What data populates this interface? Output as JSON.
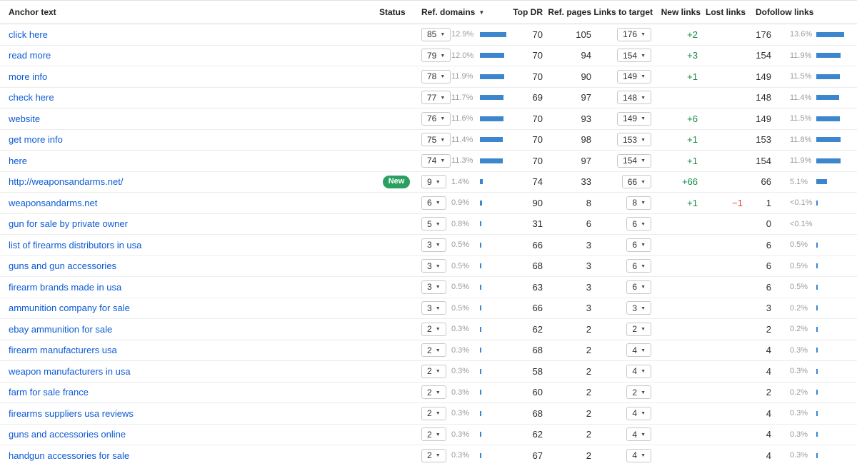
{
  "colors": {
    "link": "#0d5bd5",
    "bar": "#3b86cc",
    "badge_green": "#29a060",
    "positive_green": "#188a47",
    "negative_red": "#dd3d3d",
    "pct_gray": "#9b9b9b"
  },
  "icons": {
    "sort_desc": "▼",
    "caret_down": "▼"
  },
  "table": {
    "headers": {
      "anchor": "Anchor text",
      "status": "Status",
      "ref_domains": "Ref. domains",
      "top_dr": "Top DR",
      "ref_pages": "Ref. pages",
      "links_to_target": "Links to target",
      "new_links": "New links",
      "lost_links": "Lost links",
      "dofollow": "Dofollow links"
    },
    "sorted_by": "ref_domains",
    "rows": [
      {
        "anchor": "click here",
        "status": "",
        "rd_value": "85",
        "rd_pct": "12.9%",
        "rd_pct_num": 12.9,
        "top_dr": "70",
        "ref_pages": "105",
        "links_to_target": "176",
        "new_links": "+2",
        "lost_links": "",
        "df_value": "176",
        "df_pct": "13.6%",
        "df_pct_num": 13.6
      },
      {
        "anchor": "read more",
        "status": "",
        "rd_value": "79",
        "rd_pct": "12.0%",
        "rd_pct_num": 12.0,
        "top_dr": "70",
        "ref_pages": "94",
        "links_to_target": "154",
        "new_links": "+3",
        "lost_links": "",
        "df_value": "154",
        "df_pct": "11.9%",
        "df_pct_num": 11.9
      },
      {
        "anchor": "more info",
        "status": "",
        "rd_value": "78",
        "rd_pct": "11.9%",
        "rd_pct_num": 11.9,
        "top_dr": "70",
        "ref_pages": "90",
        "links_to_target": "149",
        "new_links": "+1",
        "lost_links": "",
        "df_value": "149",
        "df_pct": "11.5%",
        "df_pct_num": 11.5
      },
      {
        "anchor": "check here",
        "status": "",
        "rd_value": "77",
        "rd_pct": "11.7%",
        "rd_pct_num": 11.7,
        "top_dr": "69",
        "ref_pages": "97",
        "links_to_target": "148",
        "new_links": "",
        "lost_links": "",
        "df_value": "148",
        "df_pct": "11.4%",
        "df_pct_num": 11.4
      },
      {
        "anchor": "website",
        "status": "",
        "rd_value": "76",
        "rd_pct": "11.6%",
        "rd_pct_num": 11.6,
        "top_dr": "70",
        "ref_pages": "93",
        "links_to_target": "149",
        "new_links": "+6",
        "lost_links": "",
        "df_value": "149",
        "df_pct": "11.5%",
        "df_pct_num": 11.5
      },
      {
        "anchor": "get more info",
        "status": "",
        "rd_value": "75",
        "rd_pct": "11.4%",
        "rd_pct_num": 11.4,
        "top_dr": "70",
        "ref_pages": "98",
        "links_to_target": "153",
        "new_links": "+1",
        "lost_links": "",
        "df_value": "153",
        "df_pct": "11.8%",
        "df_pct_num": 11.8
      },
      {
        "anchor": "here",
        "status": "",
        "rd_value": "74",
        "rd_pct": "11.3%",
        "rd_pct_num": 11.3,
        "top_dr": "70",
        "ref_pages": "97",
        "links_to_target": "154",
        "new_links": "+1",
        "lost_links": "",
        "df_value": "154",
        "df_pct": "11.9%",
        "df_pct_num": 11.9
      },
      {
        "anchor": "http://weaponsandarms.net/",
        "status": "New",
        "rd_value": "9",
        "rd_pct": "1.4%",
        "rd_pct_num": 1.4,
        "top_dr": "74",
        "ref_pages": "33",
        "links_to_target": "66",
        "new_links": "+66",
        "lost_links": "",
        "df_value": "66",
        "df_pct": "5.1%",
        "df_pct_num": 5.1
      },
      {
        "anchor": "weaponsandarms.net",
        "status": "",
        "rd_value": "6",
        "rd_pct": "0.9%",
        "rd_pct_num": 0.9,
        "top_dr": "90",
        "ref_pages": "8",
        "links_to_target": "8",
        "new_links": "+1",
        "lost_links": "−1",
        "df_value": "1",
        "df_pct": "<0.1%",
        "df_pct_num": 0.08
      },
      {
        "anchor": "gun for sale by private owner",
        "status": "",
        "rd_value": "5",
        "rd_pct": "0.8%",
        "rd_pct_num": 0.8,
        "top_dr": "31",
        "ref_pages": "6",
        "links_to_target": "6",
        "new_links": "",
        "lost_links": "",
        "df_value": "0",
        "df_pct": "<0.1%",
        "df_pct_num": 0
      },
      {
        "anchor": "list of firearms distributors in usa",
        "status": "",
        "rd_value": "3",
        "rd_pct": "0.5%",
        "rd_pct_num": 0.5,
        "top_dr": "66",
        "ref_pages": "3",
        "links_to_target": "6",
        "new_links": "",
        "lost_links": "",
        "df_value": "6",
        "df_pct": "0.5%",
        "df_pct_num": 0.5
      },
      {
        "anchor": "guns and gun accessories",
        "status": "",
        "rd_value": "3",
        "rd_pct": "0.5%",
        "rd_pct_num": 0.5,
        "top_dr": "68",
        "ref_pages": "3",
        "links_to_target": "6",
        "new_links": "",
        "lost_links": "",
        "df_value": "6",
        "df_pct": "0.5%",
        "df_pct_num": 0.5
      },
      {
        "anchor": "firearm brands made in usa",
        "status": "",
        "rd_value": "3",
        "rd_pct": "0.5%",
        "rd_pct_num": 0.5,
        "top_dr": "63",
        "ref_pages": "3",
        "links_to_target": "6",
        "new_links": "",
        "lost_links": "",
        "df_value": "6",
        "df_pct": "0.5%",
        "df_pct_num": 0.5
      },
      {
        "anchor": "ammunition company for sale",
        "status": "",
        "rd_value": "3",
        "rd_pct": "0.5%",
        "rd_pct_num": 0.5,
        "top_dr": "66",
        "ref_pages": "3",
        "links_to_target": "3",
        "new_links": "",
        "lost_links": "",
        "df_value": "3",
        "df_pct": "0.2%",
        "df_pct_num": 0.2
      },
      {
        "anchor": "ebay ammunition for sale",
        "status": "",
        "rd_value": "2",
        "rd_pct": "0.3%",
        "rd_pct_num": 0.3,
        "top_dr": "62",
        "ref_pages": "2",
        "links_to_target": "2",
        "new_links": "",
        "lost_links": "",
        "df_value": "2",
        "df_pct": "0.2%",
        "df_pct_num": 0.2
      },
      {
        "anchor": "firearm manufacturers usa",
        "status": "",
        "rd_value": "2",
        "rd_pct": "0.3%",
        "rd_pct_num": 0.3,
        "top_dr": "68",
        "ref_pages": "2",
        "links_to_target": "4",
        "new_links": "",
        "lost_links": "",
        "df_value": "4",
        "df_pct": "0.3%",
        "df_pct_num": 0.3
      },
      {
        "anchor": "weapon manufacturers in usa",
        "status": "",
        "rd_value": "2",
        "rd_pct": "0.3%",
        "rd_pct_num": 0.3,
        "top_dr": "58",
        "ref_pages": "2",
        "links_to_target": "4",
        "new_links": "",
        "lost_links": "",
        "df_value": "4",
        "df_pct": "0.3%",
        "df_pct_num": 0.3
      },
      {
        "anchor": "farm for sale france",
        "status": "",
        "rd_value": "2",
        "rd_pct": "0.3%",
        "rd_pct_num": 0.3,
        "top_dr": "60",
        "ref_pages": "2",
        "links_to_target": "2",
        "new_links": "",
        "lost_links": "",
        "df_value": "2",
        "df_pct": "0.2%",
        "df_pct_num": 0.2
      },
      {
        "anchor": "firearms suppliers usa reviews",
        "status": "",
        "rd_value": "2",
        "rd_pct": "0.3%",
        "rd_pct_num": 0.3,
        "top_dr": "68",
        "ref_pages": "2",
        "links_to_target": "4",
        "new_links": "",
        "lost_links": "",
        "df_value": "4",
        "df_pct": "0.3%",
        "df_pct_num": 0.3
      },
      {
        "anchor": "guns and accessories online",
        "status": "",
        "rd_value": "2",
        "rd_pct": "0.3%",
        "rd_pct_num": 0.3,
        "top_dr": "62",
        "ref_pages": "2",
        "links_to_target": "4",
        "new_links": "",
        "lost_links": "",
        "df_value": "4",
        "df_pct": "0.3%",
        "df_pct_num": 0.3
      },
      {
        "anchor": "handgun accessories for sale",
        "status": "",
        "rd_value": "2",
        "rd_pct": "0.3%",
        "rd_pct_num": 0.3,
        "top_dr": "67",
        "ref_pages": "2",
        "links_to_target": "4",
        "new_links": "",
        "lost_links": "",
        "df_value": "4",
        "df_pct": "0.3%",
        "df_pct_num": 0.3
      }
    ]
  }
}
